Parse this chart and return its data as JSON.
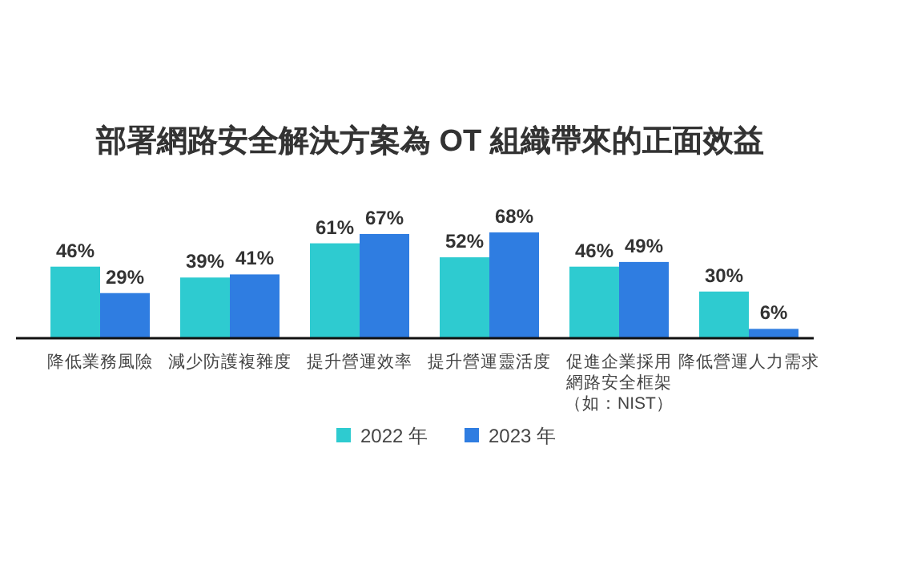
{
  "chart_data": {
    "type": "bar",
    "title": "部署網路安全解決方案為 OT 組織帶來的正面效益",
    "categories": [
      "降低業務風險",
      "減少防護複雜度",
      "提升營運效率",
      "提升營運靈活度",
      "促進企業採用網路安全框架（如：NIST）",
      "降低營運人力需求"
    ],
    "series": [
      {
        "name": "2022 年",
        "color": "#2ecbd0",
        "values": [
          46,
          39,
          61,
          52,
          46,
          30
        ],
        "value_labels": [
          "46%",
          "39%",
          "61%",
          "52%",
          "46%",
          "30%"
        ]
      },
      {
        "name": "2023 年",
        "color": "#2f7de1",
        "values": [
          29,
          41,
          67,
          68,
          49,
          6
        ],
        "value_labels": [
          "29%",
          "41%",
          "67%",
          "68%",
          "49%",
          "6%"
        ]
      }
    ],
    "legend": "bottom"
  }
}
